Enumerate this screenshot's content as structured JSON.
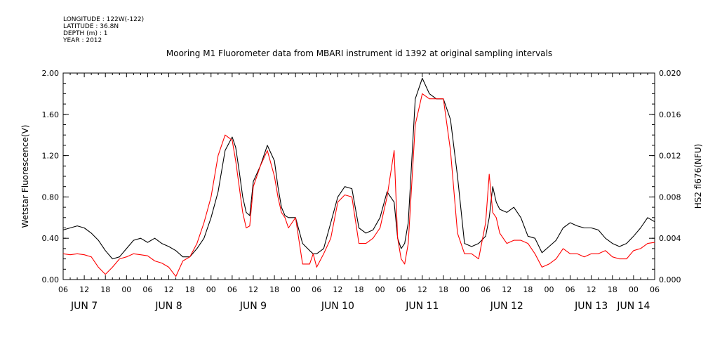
{
  "header": {
    "meta_lines": [
      "LONGITUDE : 122W(-122)",
      "LATITUDE : 36.8N",
      "DEPTH (m) : 1",
      "YEAR : 2012"
    ]
  },
  "chart_data": {
    "type": "line",
    "title": "Mooring M1 Fluorometer data from MBARI instrument id 1392 at original sampling intervals",
    "ylabel": "Wetstar Fluorescence(V)",
    "ylabel_right": "HS2 fl676(NFU)",
    "ylim": [
      0,
      2.0
    ],
    "ylim_right": [
      0,
      0.02
    ],
    "xlim": [
      6,
      174
    ],
    "x_unit": "hours since 00:00 on JUN 7 2012",
    "y_ticks": [
      "0.00",
      "0.40",
      "0.80",
      "1.20",
      "1.60",
      "2.00"
    ],
    "y_ticks_right": [
      "0.000",
      "0.004",
      "0.008",
      "0.012",
      "0.016",
      "0.020"
    ],
    "x_hour_ticks": [
      "06",
      "12",
      "18",
      "00",
      "06",
      "12",
      "18",
      "00",
      "06",
      "12",
      "18",
      "00",
      "06",
      "12",
      "18",
      "00",
      "06",
      "12",
      "18",
      "00",
      "06",
      "12",
      "18",
      "00",
      "06",
      "12",
      "18",
      "00",
      "06"
    ],
    "x_day_labels": [
      "JUN  7",
      "JUN  8",
      "JUN  9",
      "JUN 10",
      "JUN 11",
      "JUN 12",
      "JUN 13",
      "JUN 14"
    ],
    "grid": false,
    "series": [
      {
        "name": "Wetstar Fluorescence(V)",
        "axis": "left",
        "color": "#000000",
        "x": [
          6,
          8,
          10,
          12,
          14,
          16,
          18,
          20,
          22,
          24,
          26,
          28,
          30,
          32,
          34,
          36,
          38,
          40,
          42,
          44,
          46,
          48,
          50,
          52,
          54,
          55,
          56,
          57,
          58,
          59,
          60,
          62,
          64,
          66,
          67,
          68,
          69,
          70,
          72,
          74,
          76,
          77,
          78,
          80,
          82,
          84,
          86,
          88,
          90,
          92,
          94,
          96,
          98,
          100,
          101,
          102,
          103,
          104,
          106,
          108,
          110,
          112,
          114,
          116,
          118,
          120,
          122,
          124,
          126,
          127,
          128,
          129,
          130,
          132,
          134,
          136,
          138,
          140,
          142,
          144,
          146,
          148,
          150,
          152,
          154,
          156,
          158,
          160,
          162,
          164,
          166,
          168,
          170,
          172,
          174
        ],
        "y": [
          0.48,
          0.5,
          0.52,
          0.5,
          0.45,
          0.38,
          0.28,
          0.2,
          0.22,
          0.3,
          0.38,
          0.4,
          0.36,
          0.4,
          0.35,
          0.32,
          0.28,
          0.22,
          0.22,
          0.3,
          0.4,
          0.6,
          0.85,
          1.25,
          1.38,
          1.28,
          1.05,
          0.8,
          0.65,
          0.62,
          0.95,
          1.1,
          1.3,
          1.15,
          0.9,
          0.7,
          0.62,
          0.6,
          0.6,
          0.35,
          0.28,
          0.25,
          0.25,
          0.3,
          0.55,
          0.8,
          0.9,
          0.88,
          0.5,
          0.45,
          0.48,
          0.6,
          0.85,
          0.75,
          0.4,
          0.3,
          0.35,
          0.55,
          1.75,
          1.95,
          1.8,
          1.75,
          1.75,
          1.55,
          1.0,
          0.35,
          0.32,
          0.35,
          0.42,
          0.6,
          0.9,
          0.75,
          0.68,
          0.65,
          0.7,
          0.6,
          0.42,
          0.4,
          0.26,
          0.32,
          0.38,
          0.5,
          0.55,
          0.52,
          0.5,
          0.5,
          0.48,
          0.4,
          0.35,
          0.32,
          0.35,
          0.42,
          0.5,
          0.6,
          0.56
        ]
      },
      {
        "name": "HS2 fl676(NFU)",
        "axis": "right",
        "color": "#ff0000",
        "x": [
          6,
          8,
          10,
          12,
          14,
          16,
          18,
          20,
          22,
          24,
          26,
          28,
          30,
          32,
          34,
          36,
          38,
          40,
          42,
          44,
          46,
          48,
          50,
          52,
          54,
          55,
          56,
          57,
          58,
          59,
          60,
          62,
          64,
          66,
          67,
          68,
          69,
          70,
          72,
          74,
          76,
          77,
          78,
          80,
          82,
          84,
          86,
          88,
          90,
          92,
          94,
          96,
          98,
          100,
          101,
          102,
          103,
          104,
          106,
          108,
          110,
          112,
          114,
          116,
          118,
          120,
          122,
          124,
          126,
          127,
          128,
          129,
          130,
          132,
          134,
          136,
          138,
          140,
          142,
          144,
          146,
          148,
          150,
          152,
          154,
          156,
          158,
          160,
          162,
          164,
          166,
          168,
          170,
          172,
          174
        ],
        "y": [
          0.0025,
          0.0024,
          0.0025,
          0.0024,
          0.0022,
          0.0012,
          0.0005,
          0.0012,
          0.002,
          0.0022,
          0.0025,
          0.0024,
          0.0023,
          0.0018,
          0.0016,
          0.0012,
          0.0003,
          0.0018,
          0.0022,
          0.0035,
          0.0055,
          0.008,
          0.012,
          0.014,
          0.0135,
          0.0115,
          0.009,
          0.0065,
          0.005,
          0.0052,
          0.009,
          0.011,
          0.0125,
          0.01,
          0.008,
          0.0065,
          0.006,
          0.005,
          0.006,
          0.0015,
          0.0015,
          0.0025,
          0.0012,
          0.0025,
          0.004,
          0.0075,
          0.0082,
          0.008,
          0.0035,
          0.0035,
          0.004,
          0.005,
          0.008,
          0.0125,
          0.004,
          0.002,
          0.0015,
          0.0035,
          0.015,
          0.018,
          0.0175,
          0.0175,
          0.0175,
          0.0125,
          0.0045,
          0.0025,
          0.0025,
          0.002,
          0.0055,
          0.0102,
          0.0065,
          0.006,
          0.0045,
          0.0035,
          0.0038,
          0.0038,
          0.0035,
          0.0025,
          0.0012,
          0.0015,
          0.002,
          0.003,
          0.0025,
          0.0025,
          0.0022,
          0.0025,
          0.0025,
          0.0028,
          0.0022,
          0.002,
          0.002,
          0.0028,
          0.003,
          0.0035,
          0.0036
        ]
      }
    ]
  }
}
